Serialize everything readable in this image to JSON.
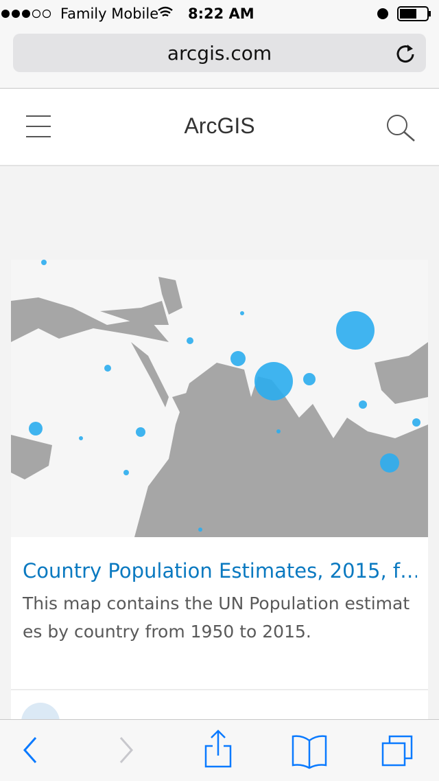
{
  "status_bar": {
    "carrier": "Family Mobile",
    "time": "8:22 AM"
  },
  "browser": {
    "url": "arcgis.com"
  },
  "header": {
    "title": "ArcGIS"
  },
  "card": {
    "title": "Country Population Estimates, 2015, f…",
    "description": "This map contains the UN Population estimates by country from 1950 to 2015."
  }
}
